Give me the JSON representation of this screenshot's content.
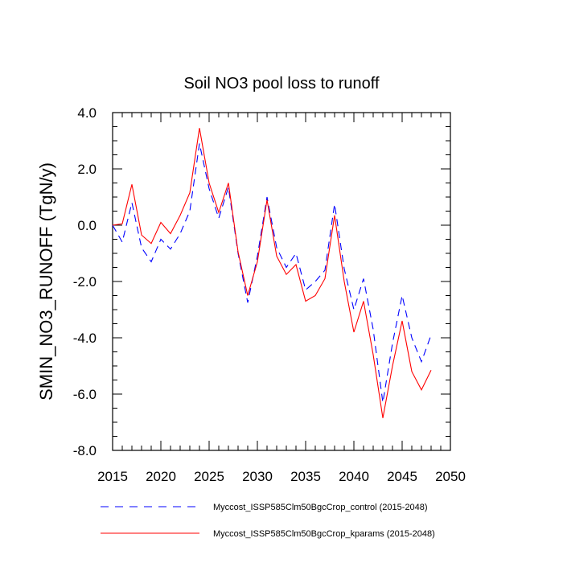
{
  "chart_data": {
    "type": "line",
    "title": "Soil NO3 pool loss to runoff",
    "xlabel": "",
    "ylabel": "SMIN_NO3_RUNOFF  (TgN/y)",
    "xlim": [
      2015,
      2050
    ],
    "ylim": [
      -8.0,
      4.0
    ],
    "x_ticks": [
      2015,
      2020,
      2025,
      2030,
      2035,
      2040,
      2045,
      2050
    ],
    "x_tick_labels": [
      "2015",
      "2020",
      "2025",
      "2030",
      "2035",
      "2040",
      "2045",
      "2050"
    ],
    "y_ticks": [
      -8.0,
      -6.0,
      -4.0,
      -2.0,
      0.0,
      2.0,
      4.0
    ],
    "y_tick_labels": [
      "-8.0",
      "-6.0",
      "-4.0",
      "-2.0",
      "0.0",
      "2.0",
      "4.0"
    ],
    "grid": false,
    "legend_position": "bottom",
    "x": [
      2015,
      2016,
      2017,
      2018,
      2019,
      2020,
      2021,
      2022,
      2023,
      2024,
      2025,
      2026,
      2027,
      2028,
      2029,
      2030,
      2031,
      2032,
      2033,
      2034,
      2035,
      2036,
      2037,
      2038,
      2039,
      2040,
      2041,
      2042,
      2043,
      2044,
      2045,
      2046,
      2047,
      2048
    ],
    "series": [
      {
        "name": "Myccost_ISSP585Clm50BgcCrop_control (2015-2048)",
        "color": "#0000ff",
        "style": "dashed",
        "values": [
          0.0,
          -0.6,
          0.8,
          -0.8,
          -1.3,
          -0.5,
          -0.85,
          -0.3,
          0.5,
          2.9,
          1.3,
          0.25,
          1.35,
          -1.0,
          -2.75,
          -1.1,
          1.0,
          -0.8,
          -1.5,
          -1.0,
          -2.3,
          -2.0,
          -1.6,
          0.75,
          -1.55,
          -3.0,
          -1.9,
          -3.7,
          -6.3,
          -4.2,
          -2.5,
          -4.0,
          -4.85,
          -3.9
        ]
      },
      {
        "name": "Myccost_ISSP585Clm50BgcCrop_kparams (2015-2048)",
        "color": "#ff0000",
        "style": "solid",
        "values": [
          0.0,
          0.05,
          1.45,
          -0.35,
          -0.65,
          0.1,
          -0.3,
          0.35,
          1.15,
          3.45,
          1.5,
          0.45,
          1.5,
          -0.95,
          -2.5,
          -1.3,
          0.9,
          -1.1,
          -1.75,
          -1.4,
          -2.7,
          -2.5,
          -1.9,
          0.35,
          -2.0,
          -3.8,
          -2.7,
          -4.6,
          -6.85,
          -5.0,
          -3.4,
          -5.2,
          -5.85,
          -5.15
        ]
      }
    ]
  }
}
